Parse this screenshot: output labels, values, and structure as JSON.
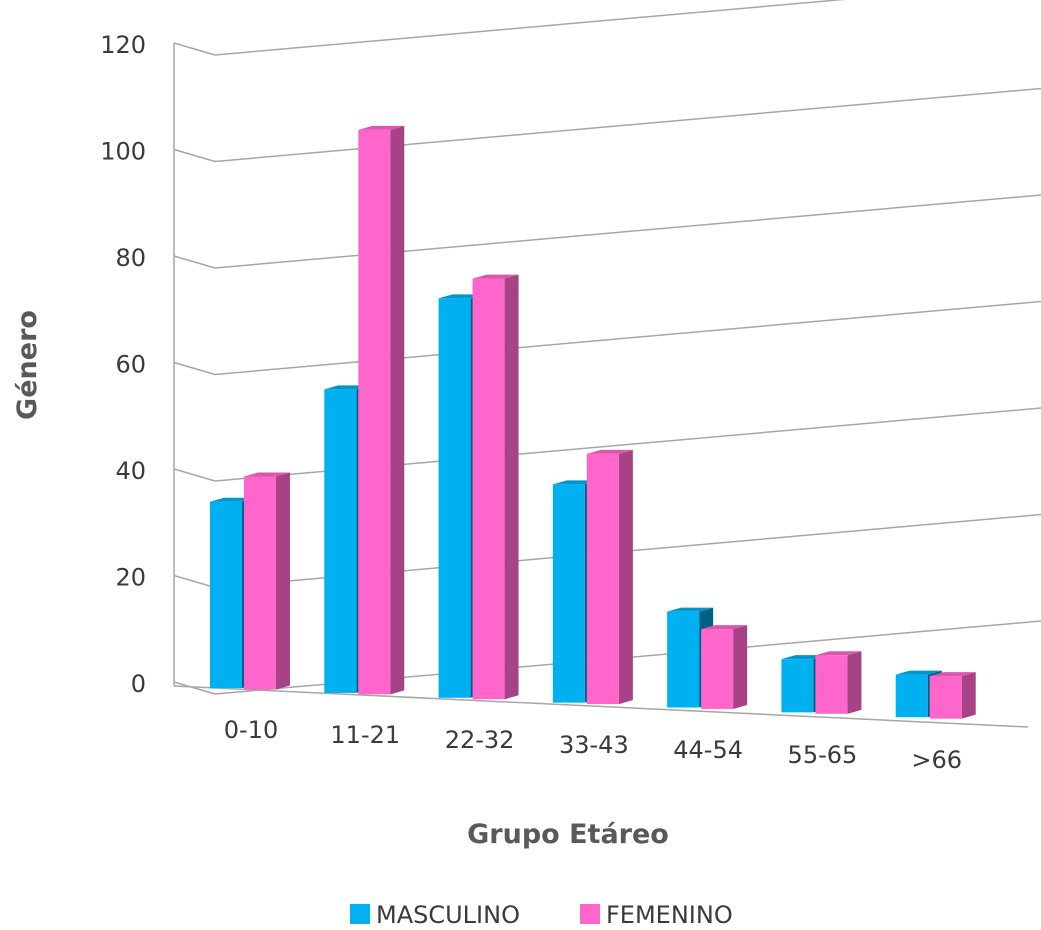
{
  "chart_data": {
    "type": "bar",
    "title": "",
    "xlabel": "Grupo Etáreo",
    "ylabel": "Género",
    "categories": [
      "0-10",
      "11-21",
      "22-32",
      "33-43",
      "44-54",
      "55-65",
      ">66"
    ],
    "series": [
      {
        "name": "MASCULINO",
        "color": "#00b0f0",
        "values": [
          35,
          57,
          75,
          41,
          18,
          10,
          8
        ]
      },
      {
        "name": "FEMENINO",
        "color": "#ff66cc",
        "values": [
          40,
          106,
          79,
          47,
          15,
          11,
          8
        ]
      }
    ],
    "yticks": [
      0,
      20,
      40,
      60,
      80,
      100,
      120
    ],
    "ylim": [
      0,
      120
    ],
    "grid": true,
    "legend": "bottom",
    "style": "3d-clustered-column"
  }
}
